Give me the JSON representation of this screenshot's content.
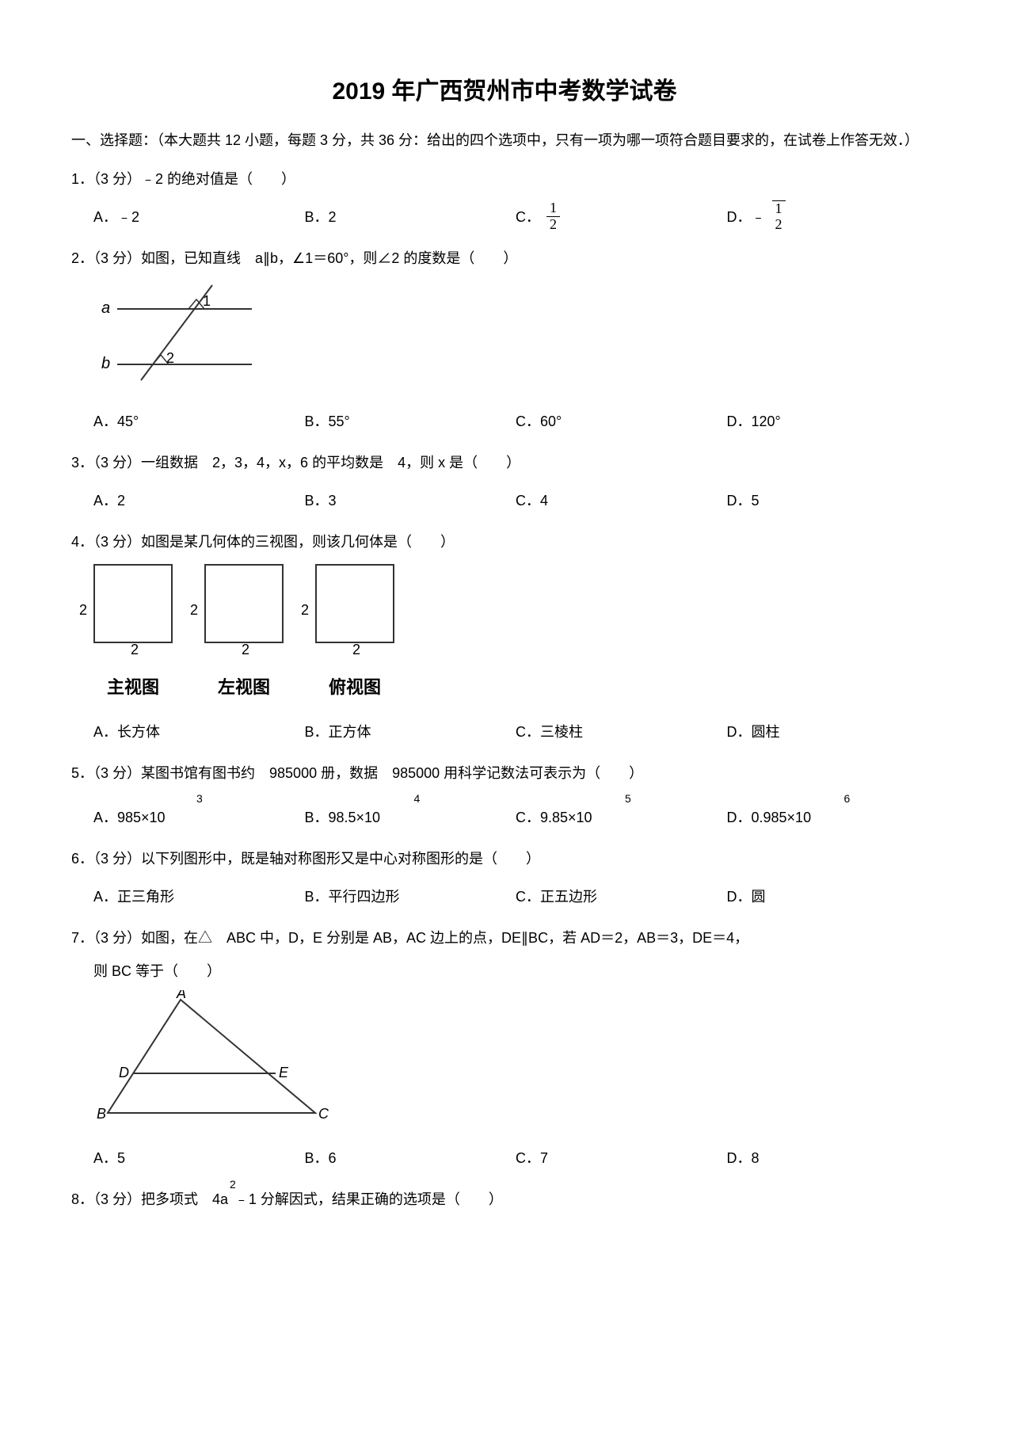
{
  "title": "2019 年广西贺州市中考数学试卷",
  "section1_header": "一、选择题：（本大题共 12 小题，每题 3 分，共 36 分：给出的四个选项中，只有一项为哪一项符合题目要求的，在试卷上作答无效．）",
  "q1": {
    "stem": "1．（3 分）﹣2 的绝对值是（　　）",
    "A": "A．﹣2",
    "B": "B．2",
    "C_prefix": "C．",
    "C_num": "1",
    "C_den": "2",
    "D_prefix": "D．﹣",
    "D_num": "1",
    "D_den": "2"
  },
  "q2": {
    "stem": "2．（3 分）如图，已知直线　a∥b，∠1＝60°，则∠2 的度数是（　　）",
    "A": "A．45°",
    "B": "B．55°",
    "C": "C．60°",
    "D": "D．120°",
    "fig": {
      "a_label": "a",
      "b_label": "b",
      "angle1": "1",
      "angle2": "2"
    }
  },
  "q3": {
    "stem": "3．（3 分）一组数据　2，3，4，x，6 的平均数是　4，则 x 是（　　）",
    "A": "A．2",
    "B": "B．3",
    "C": "C．4",
    "D": "D．5"
  },
  "q4": {
    "stem": "4．（3 分）如图是某几何体的三视图，则该几何体是（　　）",
    "views": {
      "dim": "2",
      "front": "主视图",
      "left": "左视图",
      "top": "俯视图"
    },
    "A": "A．长方体",
    "B": "B．正方体",
    "C": "C．三棱柱",
    "D": "D．圆柱"
  },
  "q5": {
    "stem": "5．（3 分）某图书馆有图书约　985000 册，数据　985000 用科学记数法可表示为（　　）",
    "A_base": "A．985×10",
    "A_exp": "3",
    "B_base": "B．98.5×10",
    "B_exp": "4",
    "C_base": "C．9.85×10",
    "C_exp": "5",
    "D_base": "D．0.985×10",
    "D_exp": "6"
  },
  "q6": {
    "stem": "6．（3 分）以下列图形中，既是轴对称图形又是中心对称图形的是（　　）",
    "A": "A．正三角形",
    "B": "B．平行四边形",
    "C": "C．正五边形",
    "D": "D．圆"
  },
  "q7": {
    "stem": "7．（3 分）如图，在△　ABC 中，D，E 分别是 AB，AC 边上的点，DE∥BC，若 AD＝2，AB＝3，DE＝4，",
    "stem2": "则 BC 等于（　　）",
    "fig": {
      "A": "A",
      "B": "B",
      "C": "C",
      "D": "D",
      "E": "E"
    },
    "A": "A．5",
    "B": "B．6",
    "C": "C．7",
    "D": "D．8"
  },
  "q8": {
    "stem_prefix": "8．（3 分）把多项式　4a",
    "stem_exp": "2",
    "stem_suffix": "﹣1 分解因式，结果正确的选项是（　　）"
  }
}
